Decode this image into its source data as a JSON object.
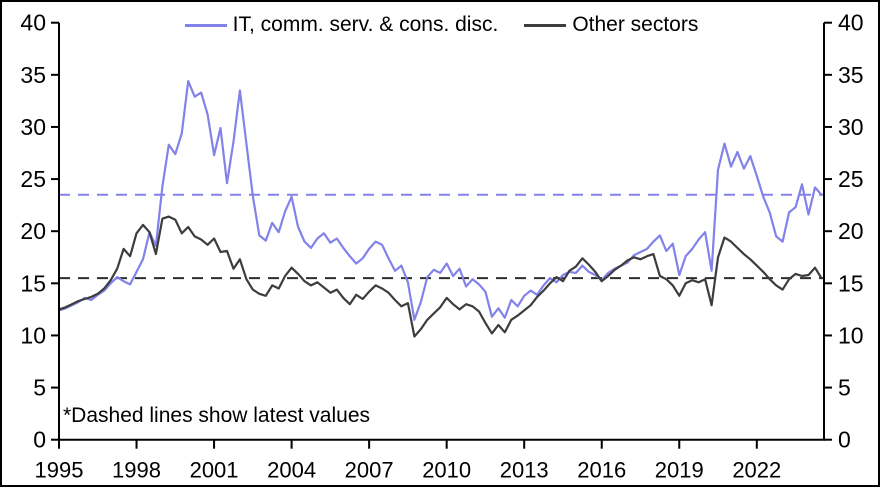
{
  "chart_data": {
    "type": "line",
    "title": "",
    "xlabel": "",
    "ylabel": "",
    "grid": false,
    "legend_position": "top-center-inside",
    "footnote": "*Dashed lines show latest values",
    "xlim": [
      1995,
      2024.6
    ],
    "ylim": [
      0,
      40
    ],
    "xticks": [
      1995,
      1998,
      2001,
      2004,
      2007,
      2010,
      2013,
      2016,
      2019,
      2022
    ],
    "yticks": [
      0,
      5,
      10,
      15,
      20,
      25,
      30,
      35,
      40
    ],
    "axis_color": "#000000",
    "x": [
      1995,
      1995.25,
      1995.5,
      1995.75,
      1996,
      1996.25,
      1996.5,
      1996.75,
      1997,
      1997.25,
      1997.5,
      1997.75,
      1998,
      1998.25,
      1998.5,
      1998.75,
      1999,
      1999.25,
      1999.5,
      1999.75,
      2000,
      2000.25,
      2000.5,
      2000.75,
      2001,
      2001.25,
      2001.5,
      2001.75,
      2002,
      2002.25,
      2002.5,
      2002.75,
      2003,
      2003.25,
      2003.5,
      2003.75,
      2004,
      2004.25,
      2004.5,
      2004.75,
      2005,
      2005.25,
      2005.5,
      2005.75,
      2006,
      2006.25,
      2006.5,
      2006.75,
      2007,
      2007.25,
      2007.5,
      2007.75,
      2008,
      2008.25,
      2008.5,
      2008.75,
      2009,
      2009.25,
      2009.5,
      2009.75,
      2010,
      2010.25,
      2010.5,
      2010.75,
      2011,
      2011.25,
      2011.5,
      2011.75,
      2012,
      2012.25,
      2012.5,
      2012.75,
      2013,
      2013.25,
      2013.5,
      2013.75,
      2014,
      2014.25,
      2014.5,
      2014.75,
      2015,
      2015.25,
      2015.5,
      2015.75,
      2016,
      2016.25,
      2016.5,
      2016.75,
      2017,
      2017.25,
      2017.5,
      2017.75,
      2018,
      2018.25,
      2018.5,
      2018.75,
      2019,
      2019.25,
      2019.5,
      2019.75,
      2020,
      2020.25,
      2020.5,
      2020.75,
      2021,
      2021.25,
      2021.5,
      2021.75,
      2022,
      2022.25,
      2022.5,
      2022.75,
      2023,
      2023.25,
      2023.5,
      2023.75,
      2024,
      2024.25,
      2024.5
    ],
    "series": [
      {
        "name": "IT, comm. serv. & cons. disc.",
        "color": "#8282ea",
        "values": [
          12.4,
          12.6,
          12.9,
          13.2,
          13.6,
          13.4,
          13.9,
          14.3,
          15.0,
          15.6,
          15.2,
          14.9,
          16.1,
          17.3,
          19.9,
          18.6,
          24.3,
          28.3,
          27.4,
          29.4,
          34.4,
          32.9,
          33.3,
          31.2,
          27.3,
          29.9,
          24.6,
          28.6,
          33.5,
          28.4,
          23.4,
          19.6,
          19.1,
          20.8,
          19.9,
          21.9,
          23.3,
          20.4,
          19.0,
          18.4,
          19.3,
          19.8,
          18.9,
          19.3,
          18.4,
          17.6,
          16.9,
          17.4,
          18.3,
          19.0,
          18.7,
          17.4,
          16.2,
          16.7,
          15.1,
          11.5,
          13.2,
          15.6,
          16.3,
          16.0,
          16.9,
          15.7,
          16.4,
          14.7,
          15.4,
          14.9,
          14.2,
          11.8,
          12.6,
          11.7,
          13.4,
          12.8,
          13.8,
          14.3,
          13.9,
          14.8,
          15.5,
          15.1,
          15.8,
          16.1,
          16.0,
          16.7,
          16.1,
          15.8,
          15.3,
          16.0,
          16.4,
          16.7,
          17.0,
          17.7,
          18.0,
          18.3,
          19.0,
          19.6,
          18.1,
          18.8,
          15.8,
          17.6,
          18.3,
          19.2,
          19.9,
          16.2,
          25.9,
          28.4,
          26.2,
          27.6,
          26.0,
          27.2,
          25.3,
          23.3,
          21.8,
          19.5,
          19.0,
          21.8,
          22.3,
          24.5,
          21.6,
          24.2,
          23.5
        ]
      },
      {
        "name": "Other sectors",
        "color": "#3d3d3d",
        "values": [
          12.5,
          12.7,
          13.0,
          13.3,
          13.5,
          13.7,
          14.0,
          14.5,
          15.3,
          16.4,
          18.3,
          17.6,
          19.8,
          20.6,
          19.9,
          17.8,
          21.2,
          21.4,
          21.1,
          19.8,
          20.4,
          19.5,
          19.2,
          18.7,
          19.3,
          18.0,
          18.1,
          16.4,
          17.3,
          15.4,
          14.4,
          14.0,
          13.8,
          14.8,
          14.5,
          15.7,
          16.5,
          15.9,
          15.2,
          14.8,
          15.1,
          14.6,
          14.1,
          14.4,
          13.6,
          13.0,
          13.9,
          13.5,
          14.2,
          14.8,
          14.5,
          14.1,
          13.4,
          12.8,
          13.1,
          9.9,
          10.6,
          11.5,
          12.1,
          12.7,
          13.6,
          13.0,
          12.5,
          13.0,
          12.8,
          12.3,
          11.2,
          10.2,
          11.0,
          10.3,
          11.5,
          11.9,
          12.4,
          12.9,
          13.7,
          14.3,
          15.0,
          15.6,
          15.2,
          16.2,
          16.6,
          17.4,
          16.8,
          16.1,
          15.2,
          15.7,
          16.3,
          16.7,
          17.2,
          17.5,
          17.3,
          17.6,
          17.8,
          15.7,
          15.4,
          14.8,
          13.8,
          15.0,
          15.3,
          15.1,
          15.4,
          12.9,
          17.5,
          19.4,
          19.0,
          18.4,
          17.8,
          17.3,
          16.7,
          16.1,
          15.4,
          14.8,
          14.4,
          15.4,
          15.9,
          15.7,
          15.8,
          16.5,
          15.5
        ]
      }
    ],
    "dashed_reference_lines": [
      {
        "label": "IT, comm. serv. & cons. disc. latest value",
        "value": 23.5,
        "color": "#8282ea"
      },
      {
        "label": "Other sectors latest value",
        "value": 15.5,
        "color": "#2e2e2e"
      }
    ]
  }
}
